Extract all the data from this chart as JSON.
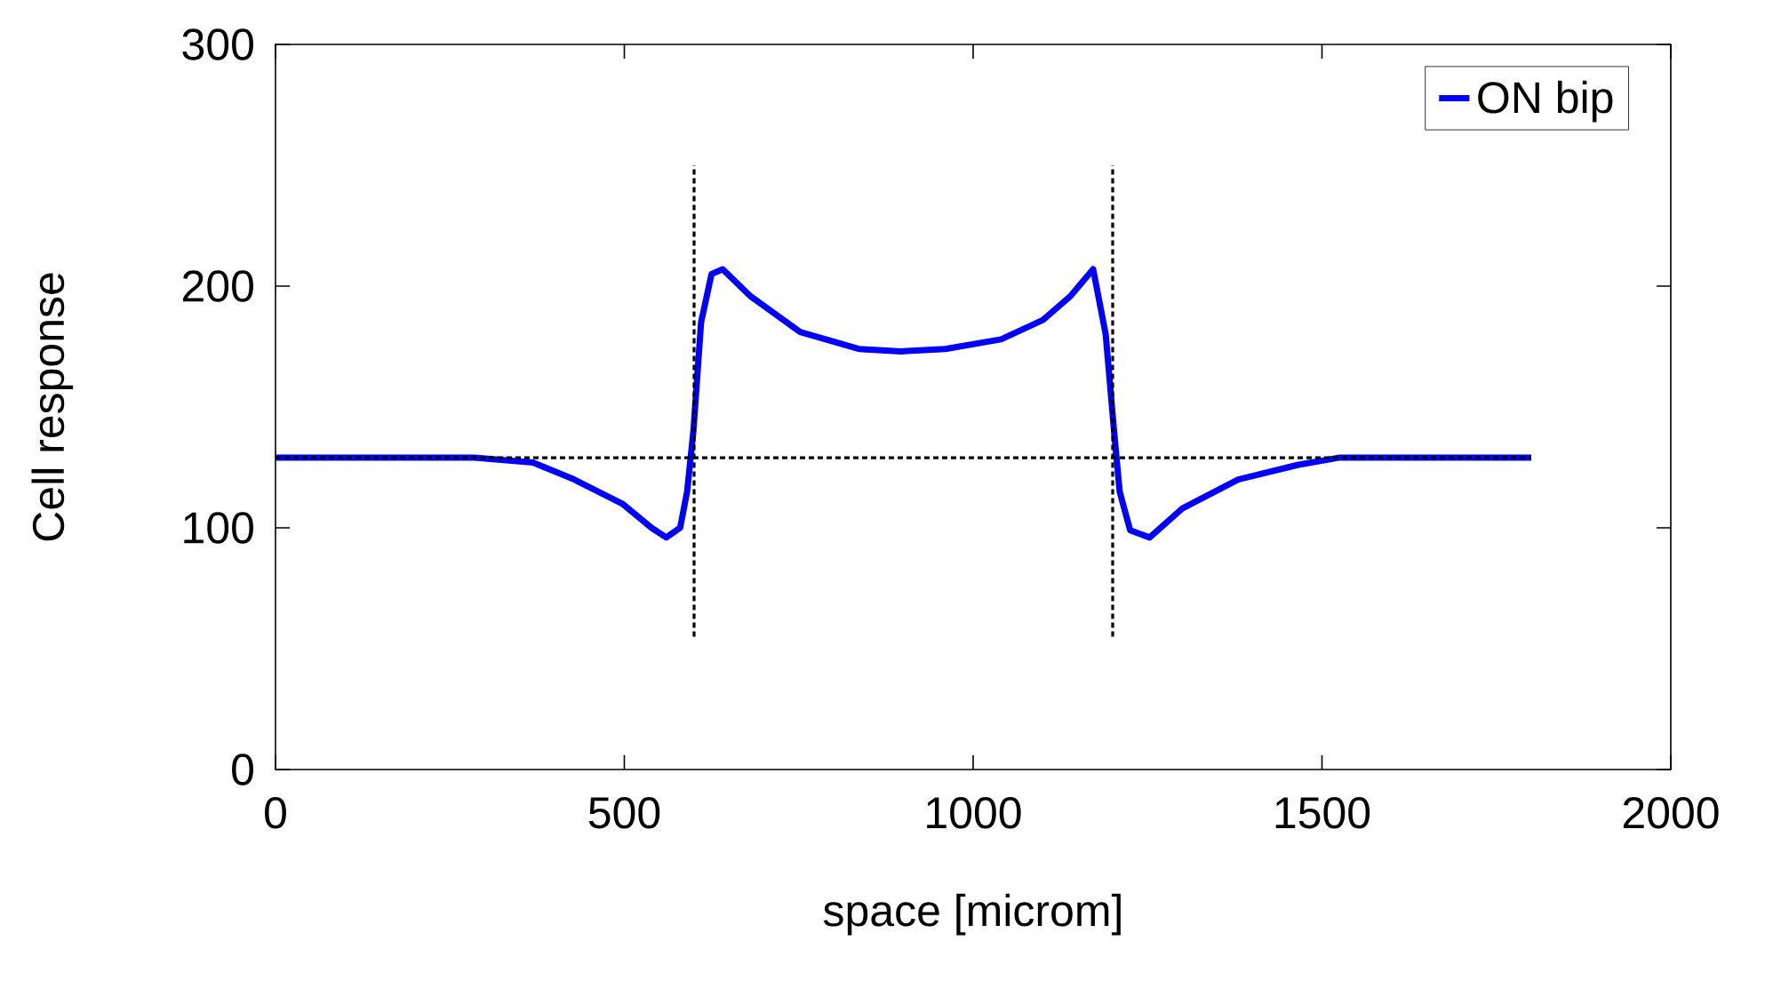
{
  "chart_data": {
    "type": "line",
    "xlabel": "space [microm]",
    "ylabel": "Cell response",
    "xlim": [
      0,
      2000
    ],
    "ylim": [
      0,
      300
    ],
    "xticks": [
      0,
      500,
      1000,
      1500,
      2000
    ],
    "yticks": [
      0,
      100,
      200,
      300
    ],
    "grid": false,
    "legend": "top right",
    "series": [
      {
        "name": "ON bip",
        "color": "#0000ff",
        "line_style": "solid",
        "x": [
          0,
          100,
          200,
          285,
          369,
          428,
          497,
          539,
          560,
          580,
          590,
          599,
          610,
          625,
          641,
          680,
          752,
          836,
          897,
          960,
          1040,
          1100,
          1140,
          1172,
          1190,
          1202,
          1210,
          1225,
          1253,
          1300,
          1380,
          1465,
          1524,
          1600,
          1700,
          1800
        ],
        "values": [
          129,
          129,
          129,
          129,
          127,
          120,
          110,
          100,
          96,
          100,
          115,
          140,
          185,
          205,
          207,
          196,
          181,
          174,
          173,
          174,
          178,
          186,
          196,
          207,
          180,
          140,
          115,
          99,
          96,
          108,
          120,
          126,
          129,
          129,
          129,
          129
        ]
      },
      {
        "color": "#000000",
        "line_style": "dotted",
        "x": [
          0,
          1800
        ],
        "values": [
          129,
          129
        ]
      },
      {
        "color": "#000000",
        "line_style": "dotted",
        "x": [
          600,
          600
        ],
        "values": [
          55,
          250
        ]
      },
      {
        "color": "#000000",
        "line_style": "dotted",
        "x": [
          1200,
          1200
        ],
        "values": [
          55,
          250
        ]
      }
    ]
  }
}
